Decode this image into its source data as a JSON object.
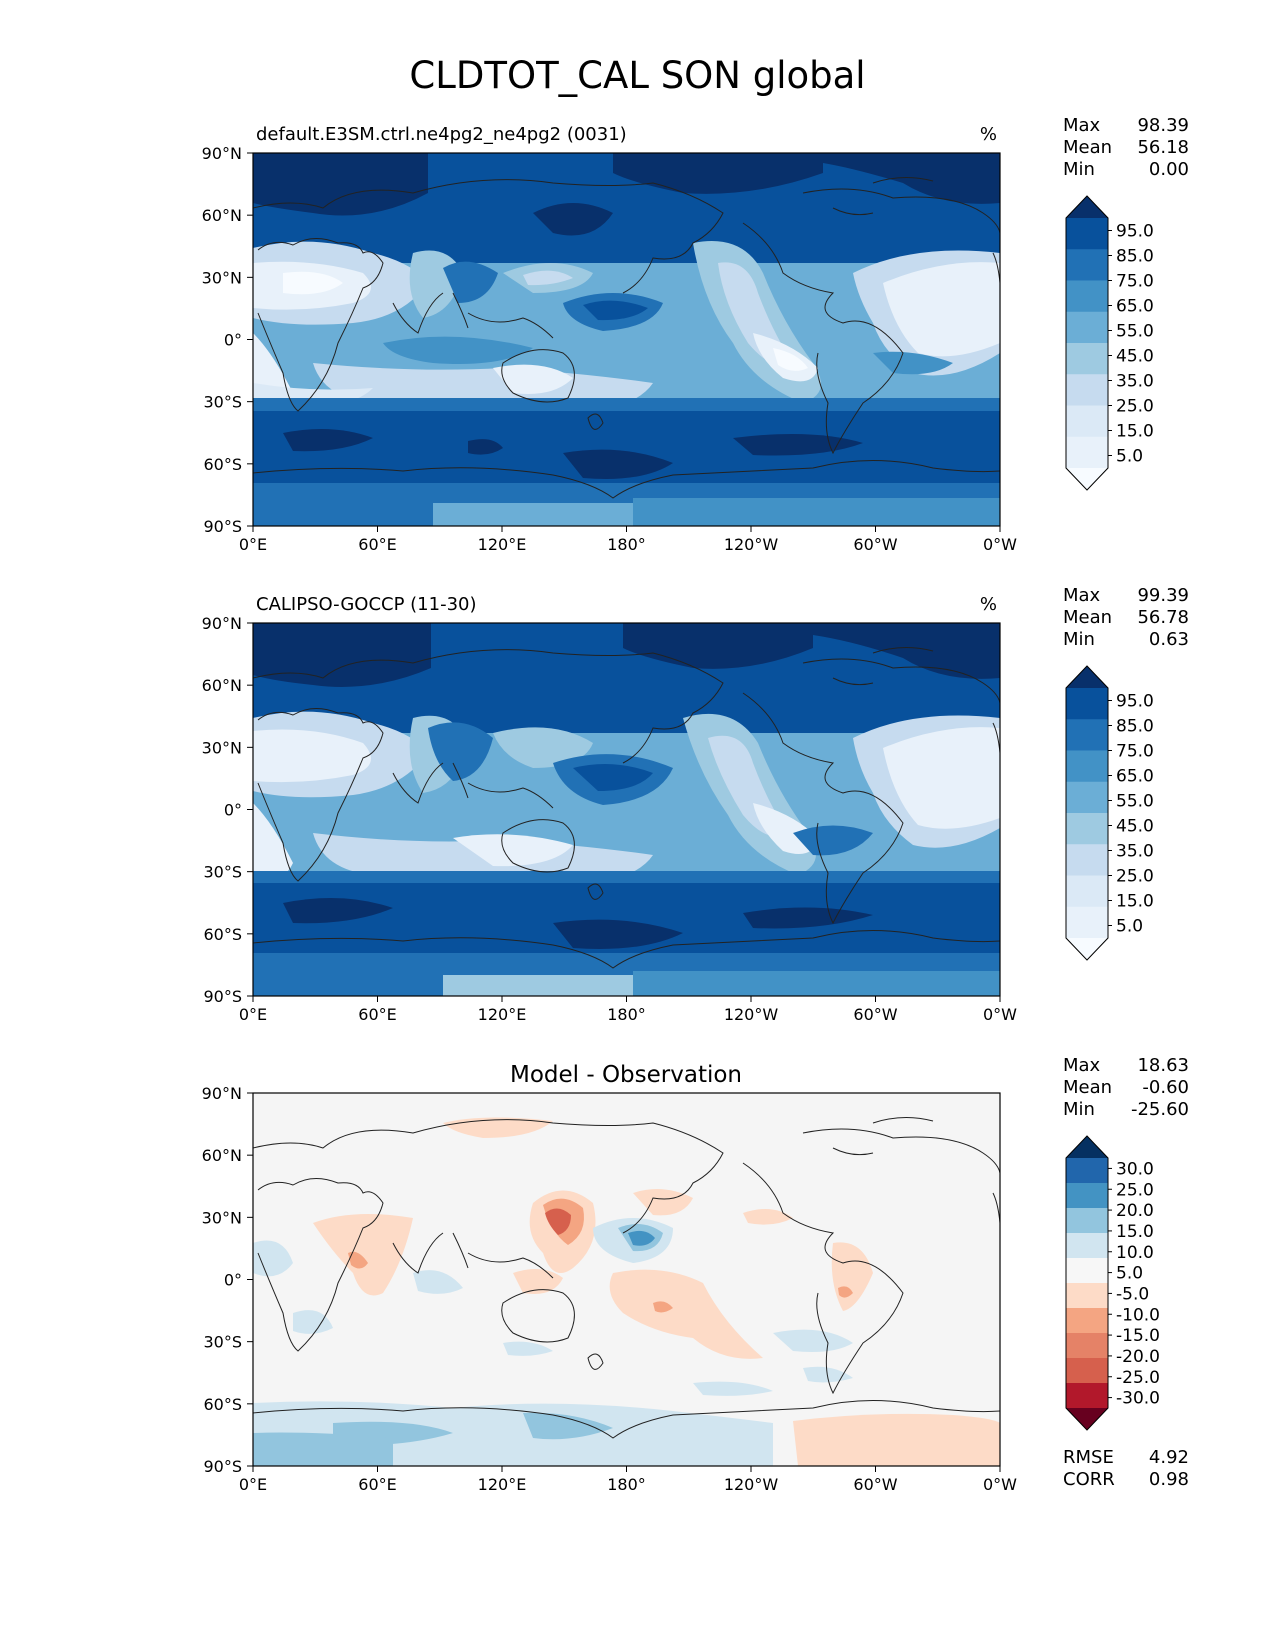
{
  "figure": {
    "title": "CLDTOT_CAL SON global"
  },
  "axes": {
    "lat_ticks": [
      "90°N",
      "60°N",
      "30°N",
      "0°",
      "30°S",
      "60°S",
      "90°S"
    ],
    "lon_ticks": [
      "0°E",
      "60°E",
      "120°E",
      "180°",
      "120°W",
      "60°W",
      "0°W"
    ]
  },
  "chart_data": [
    {
      "type": "heatmap",
      "title": "default.E3SM.ctrl.ne4pg2_ne4pg2 (0031)",
      "units": "%",
      "stats": {
        "max_label": "Max",
        "max": "98.39",
        "mean_label": "Mean",
        "mean": "56.18",
        "min_label": "Min",
        "min": "0.00"
      },
      "colorbar": {
        "levels": [
          "95.0",
          "85.0",
          "75.0",
          "65.0",
          "55.0",
          "45.0",
          "35.0",
          "25.0",
          "15.0",
          "5.0"
        ],
        "colors": [
          "#08306b",
          "#08519c",
          "#2171b5",
          "#4292c6",
          "#6baed6",
          "#9ecae1",
          "#c6dbef",
          "#dbe9f6",
          "#e8f1fa",
          "#f7fbff"
        ]
      },
      "xlim": [
        0,
        360
      ],
      "ylim": [
        -90,
        90
      ]
    },
    {
      "type": "heatmap",
      "title": "CALIPSO-GOCCP (11-30)",
      "units": "%",
      "stats": {
        "max_label": "Max",
        "max": "99.39",
        "mean_label": "Mean",
        "mean": "56.78",
        "min_label": "Min",
        "min": "0.63"
      },
      "colorbar": {
        "levels": [
          "95.0",
          "85.0",
          "75.0",
          "65.0",
          "55.0",
          "45.0",
          "35.0",
          "25.0",
          "15.0",
          "5.0"
        ],
        "colors": [
          "#08306b",
          "#08519c",
          "#2171b5",
          "#4292c6",
          "#6baed6",
          "#9ecae1",
          "#c6dbef",
          "#dbe9f6",
          "#e8f1fa",
          "#f7fbff"
        ]
      },
      "xlim": [
        0,
        360
      ],
      "ylim": [
        -90,
        90
      ]
    },
    {
      "type": "heatmap",
      "title": "Model - Observation",
      "units": "",
      "stats": {
        "max_label": "Max",
        "max": "18.63",
        "mean_label": "Mean",
        "mean": "-0.60",
        "min_label": "Min",
        "min": "-25.60"
      },
      "extra_stats": [
        {
          "label": "RMSE",
          "value": "4.92"
        },
        {
          "label": "CORR",
          "value": "0.98"
        }
      ],
      "colorbar": {
        "levels": [
          "30.0",
          "25.0",
          "20.0",
          "15.0",
          "10.0",
          "5.0",
          "-5.0",
          "-10.0",
          "-15.0",
          "-20.0",
          "-25.0",
          "-30.0"
        ],
        "colors": [
          "#053061",
          "#2166ac",
          "#4393c3",
          "#92c5de",
          "#d1e5f0",
          "#f7f7f7",
          "#fddbc7",
          "#f4a582",
          "#e58267",
          "#d6604d",
          "#b2182b",
          "#67001f"
        ]
      },
      "xlim": [
        0,
        360
      ],
      "ylim": [
        -90,
        90
      ]
    }
  ]
}
